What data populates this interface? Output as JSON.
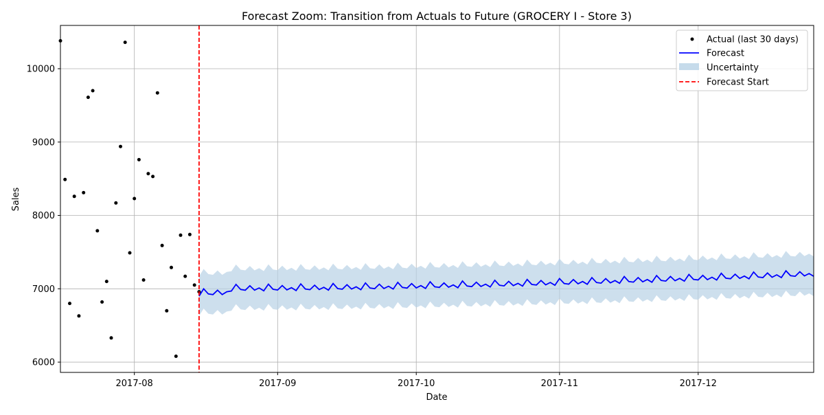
{
  "chart_data": {
    "type": "line",
    "title": "Forecast Zoom: Transition from Actuals to Future (GROCERY I - Store 3)",
    "xlabel": "Date",
    "ylabel": "Sales",
    "x_range": [
      "2017-07-16",
      "2017-12-26"
    ],
    "ylim": [
      5860,
      10590
    ],
    "x_ticks": [
      {
        "date": "2017-08-01",
        "label": "2017-08"
      },
      {
        "date": "2017-09-01",
        "label": "2017-09"
      },
      {
        "date": "2017-10-01",
        "label": "2017-10"
      },
      {
        "date": "2017-11-01",
        "label": "2017-11"
      },
      {
        "date": "2017-12-01",
        "label": "2017-12"
      }
    ],
    "y_ticks": [
      6000,
      7000,
      8000,
      9000,
      10000
    ],
    "grid": true,
    "legend_position": "top-right",
    "forecast_start": "2017-08-15",
    "colors": {
      "actual": "#000000",
      "forecast": "#0000ff",
      "uncertainty": "#b8d2e6",
      "forecast_start": "#ff0000",
      "grid": "#b0b0b0"
    },
    "legend": [
      {
        "key": "actual",
        "label": "Actual (last 30 days)"
      },
      {
        "key": "forecast",
        "label": "Forecast"
      },
      {
        "key": "uncertainty",
        "label": "Uncertainty"
      },
      {
        "key": "forecast_start",
        "label": "Forecast Start"
      }
    ],
    "series": [
      {
        "name": "Actual (last 30 days)",
        "kind": "scatter",
        "x": [
          "2017-07-16",
          "2017-07-17",
          "2017-07-18",
          "2017-07-19",
          "2017-07-20",
          "2017-07-21",
          "2017-07-22",
          "2017-07-23",
          "2017-07-24",
          "2017-07-25",
          "2017-07-26",
          "2017-07-27",
          "2017-07-28",
          "2017-07-29",
          "2017-07-30",
          "2017-07-31",
          "2017-08-01",
          "2017-08-02",
          "2017-08-03",
          "2017-08-04",
          "2017-08-05",
          "2017-08-06",
          "2017-08-07",
          "2017-08-08",
          "2017-08-09",
          "2017-08-10",
          "2017-08-11",
          "2017-08-12",
          "2017-08-13",
          "2017-08-14",
          "2017-08-15"
        ],
        "values": [
          10380,
          8490,
          6800,
          8260,
          6630,
          8310,
          9610,
          9700,
          7790,
          6820,
          7100,
          6330,
          8170,
          8940,
          10360,
          7490,
          8230,
          8760,
          7120,
          8570,
          8530,
          9670,
          7590,
          6700,
          7290,
          6080,
          7730,
          7170,
          7740,
          7050,
          6960
        ]
      },
      {
        "name": "Forecast",
        "kind": "line",
        "start": "2017-08-15",
        "base": [
          6900,
          7000,
          6930,
          6920,
          6980,
          6920,
          6960
        ],
        "weekly": [
          0,
          90,
          20,
          10,
          70,
          10,
          40
        ],
        "end_level": 7170
      },
      {
        "name": "Uncertainty",
        "kind": "band",
        "half_width": 270
      }
    ]
  }
}
